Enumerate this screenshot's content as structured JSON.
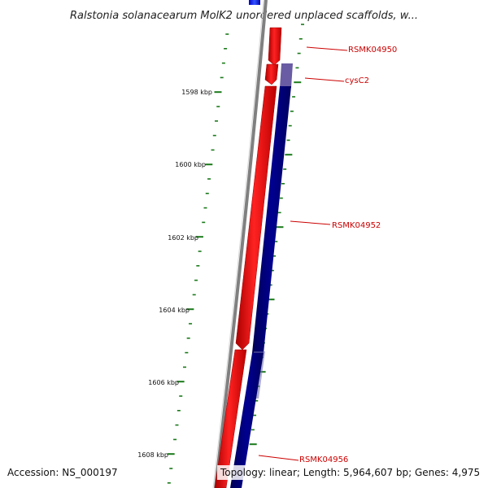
{
  "title": "Ralstonia solanacearum MolK2 unordered unplaced scaffolds, w...",
  "accession": "Accession: NS_000197",
  "topology": "Topology: linear; Length: 5,964,607 bp; Genes: 4,975",
  "ruler": {
    "ticks": [
      {
        "label": "1598 kbp"
      },
      {
        "label": "1600 kbp"
      },
      {
        "label": "1602 kbp"
      },
      {
        "label": "1604 kbp"
      },
      {
        "label": "1606 kbp"
      },
      {
        "label": "1608 kbp"
      }
    ]
  },
  "genes": [
    {
      "label": "RSMK04950",
      "strand": "forward"
    },
    {
      "label": "cysC2",
      "strand": "reverse"
    },
    {
      "label": "RSMK04952",
      "strand": "forward"
    },
    {
      "label": "RSMK04956",
      "strand": "reverse"
    }
  ],
  "colors": {
    "forward_strand": "#ff0000",
    "reverse_strand": "#00007f",
    "axis": "#808080",
    "ticks": "#1a7a1a",
    "labels": "#cc0000"
  }
}
